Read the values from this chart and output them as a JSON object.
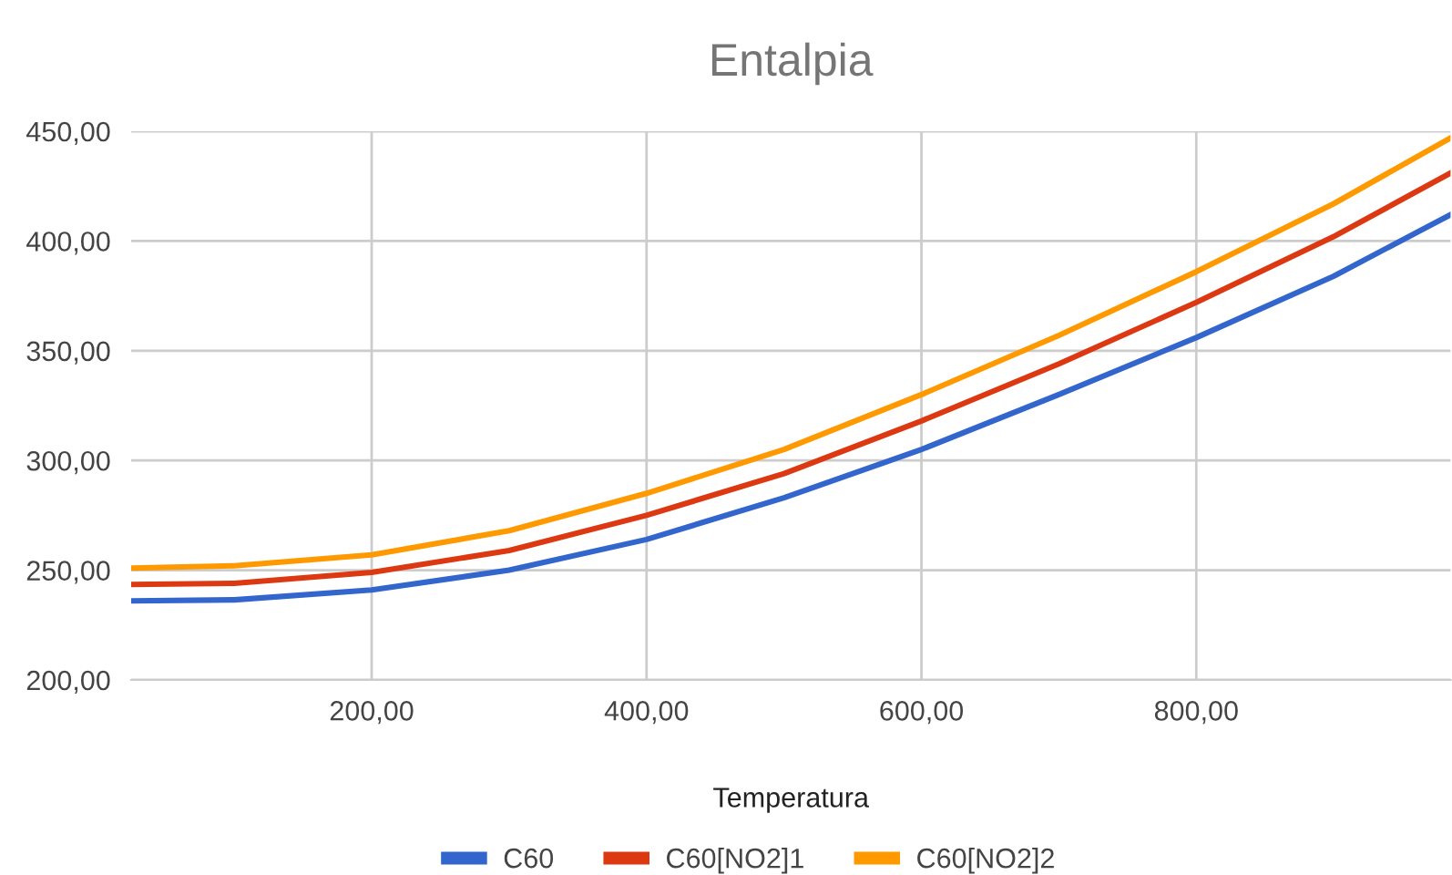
{
  "chart_data": {
    "type": "line",
    "title": "Entalpia",
    "xlabel": "Temperatura",
    "x": [
      25,
      100,
      200,
      300,
      400,
      500,
      600,
      700,
      800,
      900,
      985
    ],
    "series": [
      {
        "name": "C60",
        "color": "#3366cc",
        "values": [
          236,
          236.5,
          241,
          250,
          264,
          283,
          305,
          330,
          356,
          384,
          412
        ]
      },
      {
        "name": "C60[NO2]1",
        "color": "#dc3912",
        "values": [
          243.5,
          244,
          249,
          259,
          275,
          294,
          318,
          344,
          372,
          402,
          431
        ]
      },
      {
        "name": "C60[NO2]2",
        "color": "#ff9900",
        "values": [
          251,
          252,
          257,
          268,
          285,
          305,
          330,
          357,
          386,
          417,
          447
        ]
      }
    ],
    "xlim": [
      25,
      985
    ],
    "ylim": [
      200,
      450
    ],
    "xticks": [
      {
        "value": 200,
        "label": "200,00"
      },
      {
        "value": 400,
        "label": "400,00"
      },
      {
        "value": 600,
        "label": "600,00"
      },
      {
        "value": 800,
        "label": "800,00"
      }
    ],
    "yticks": [
      {
        "value": 200,
        "label": "200,00"
      },
      {
        "value": 250,
        "label": "250,00"
      },
      {
        "value": 300,
        "label": "300,00"
      },
      {
        "value": 350,
        "label": "350,00"
      },
      {
        "value": 400,
        "label": "400,00"
      },
      {
        "value": 450,
        "label": "450,00"
      }
    ],
    "grid": true,
    "legend": "bottom",
    "marker": "none",
    "line_style": "solid"
  }
}
